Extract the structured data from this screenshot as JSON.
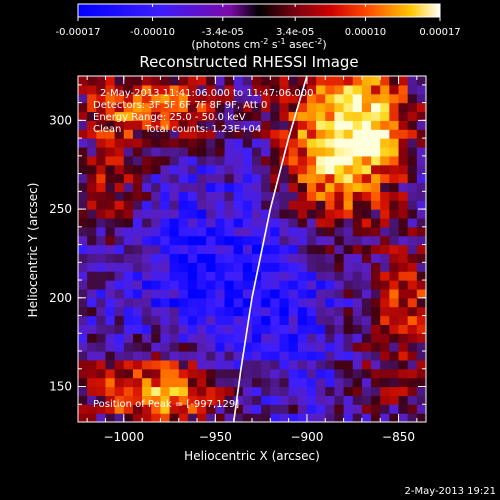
{
  "chart_data": {
    "type": "heatmap",
    "title": "Reconstructed RHESSI Image",
    "xlabel": "Heliocentric X (arcsec)",
    "ylabel": "Heliocentric Y (arcsec)",
    "xlim": [
      -1025,
      -835
    ],
    "ylim": [
      130,
      325
    ],
    "x_ticks": [
      -1000,
      -950,
      -900,
      -850
    ],
    "y_ticks": [
      150,
      200,
      250,
      300
    ],
    "colorbar": {
      "range": [
        -0.00017,
        0.00017
      ],
      "ticks": [
        -0.00017,
        -0.0001,
        -3.4e-05,
        3.4e-05,
        0.0001,
        0.00017
      ],
      "tick_labels": [
        "-0.00017",
        "-0.00010",
        "-3.4e-05",
        "3.4e-05",
        "0.00010",
        "0.00017"
      ],
      "unit_label_parts": [
        "(photons cm",
        "-2",
        " s",
        "-1",
        " asec",
        "-2",
        ")"
      ]
    },
    "annotations": [
      "2-May-2013 11:41:06.000 to 11:47:06.000",
      "Detectors: 3F 5F 6F 7F 8F 9F, Att 0",
      "Energy Range: 25.0 - 50.0 keV",
      "Clean",
      "Total counts: 1.23E+04",
      "Position of Peak = [-997,129]"
    ],
    "limb": [
      [
        -900,
        325
      ],
      [
        -910,
        290
      ],
      [
        -920,
        250
      ],
      [
        -930,
        200
      ],
      [
        -936,
        160
      ],
      [
        -940,
        130
      ]
    ],
    "footer": "2-May-2013 19:21"
  }
}
